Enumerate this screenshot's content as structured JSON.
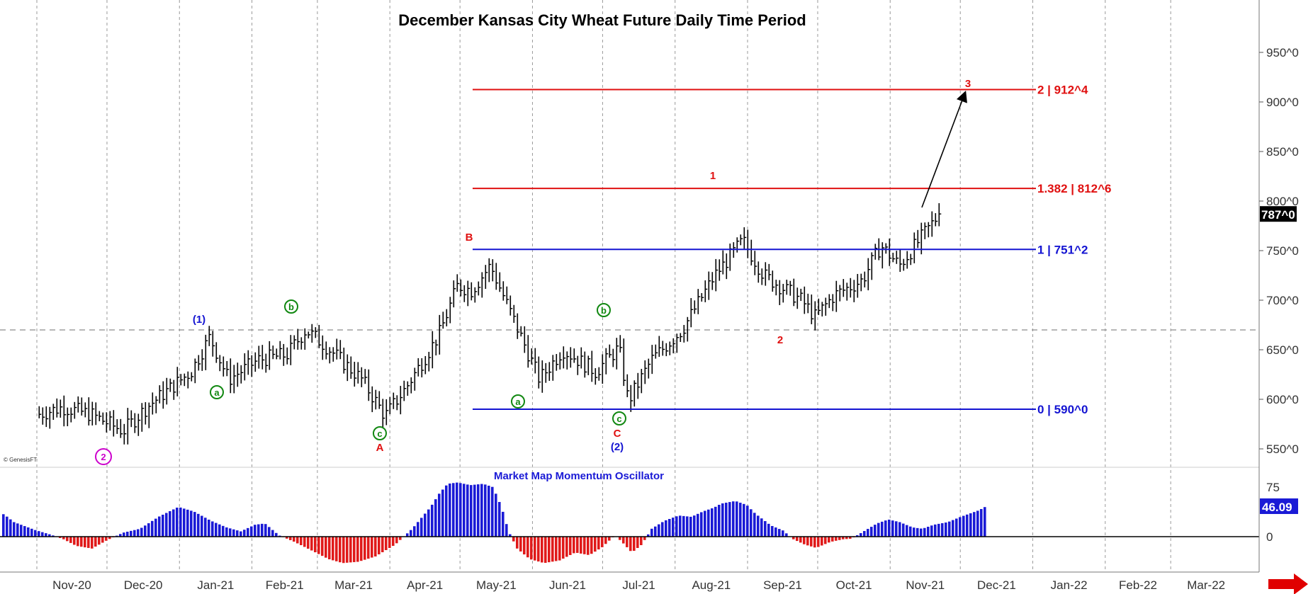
{
  "chart_data": [
    {
      "type": "ohlc",
      "title": "December Kansas City Wheat Future  Daily Time Period",
      "x_tick_labels": [
        "Nov-20",
        "Dec-20",
        "Jan-21",
        "Feb-21",
        "Mar-21",
        "Apr-21",
        "May-21",
        "Jun-21",
        "Jul-21",
        "Aug-21",
        "Sep-21",
        "Oct-21",
        "Nov-21",
        "Dec-21",
        "Jan-22",
        "Feb-22",
        "Mar-22"
      ],
      "y_tick_labels": [
        "550^0",
        "600^0",
        "650^0",
        "700^0",
        "750^0",
        "800^0",
        "850^0",
        "900^0",
        "950^0"
      ],
      "y_ticks": [
        550,
        600,
        650,
        700,
        750,
        800,
        850,
        900,
        950
      ],
      "ylim": [
        535,
        1000
      ],
      "last_price": 787,
      "last_price_label": "787^0",
      "reference_line": 670,
      "close_path": [
        [
          "2020-11-02",
          585
        ],
        [
          "2020-11-12",
          592
        ],
        [
          "2020-11-24",
          585
        ],
        [
          "2020-12-08",
          568
        ],
        [
          "2020-12-18",
          592
        ],
        [
          "2021-01-06",
          628
        ],
        [
          "2021-01-14",
          663
        ],
        [
          "2021-01-22",
          620
        ],
        [
          "2021-02-04",
          640
        ],
        [
          "2021-02-16",
          645
        ],
        [
          "2021-02-24",
          670
        ],
        [
          "2021-03-04",
          655
        ],
        [
          "2021-03-20",
          620
        ],
        [
          "2021-03-30",
          583
        ],
        [
          "2021-04-08",
          612
        ],
        [
          "2021-04-22",
          665
        ],
        [
          "2021-04-30",
          715
        ],
        [
          "2021-05-06",
          710
        ],
        [
          "2021-05-14",
          735
        ],
        [
          "2021-05-24",
          680
        ],
        [
          "2021-06-04",
          620
        ],
        [
          "2021-06-14",
          650
        ],
        [
          "2021-06-28",
          628
        ],
        [
          "2021-07-08",
          652
        ],
        [
          "2021-07-12",
          598
        ],
        [
          "2021-07-22",
          640
        ],
        [
          "2021-08-04",
          670
        ],
        [
          "2021-08-18",
          725
        ],
        [
          "2021-08-30",
          760
        ],
        [
          "2021-09-08",
          725
        ],
        [
          "2021-09-24",
          700
        ],
        [
          "2021-09-30",
          683
        ],
        [
          "2021-10-08",
          705
        ],
        [
          "2021-10-20",
          720
        ],
        [
          "2021-10-28",
          755
        ],
        [
          "2021-11-05",
          735
        ],
        [
          "2021-11-15",
          765
        ],
        [
          "2021-11-22",
          787
        ]
      ],
      "levels": [
        {
          "label": "2 | 912^4",
          "value": 912.5,
          "color": "#e01010"
        },
        {
          "label": "1.382 | 812^6",
          "value": 812.75,
          "color": "#e01010"
        },
        {
          "label": "1 | 751^2",
          "value": 751.25,
          "color": "#1414d2"
        },
        {
          "label": "0 | 590^0",
          "value": 590,
          "color": "#1414d2"
        }
      ],
      "wave_labels": [
        {
          "text": "B",
          "color": "#e01010"
        },
        {
          "text": "1",
          "color": "#e01010"
        },
        {
          "text": "2",
          "color": "#e01010"
        },
        {
          "text": "3",
          "color": "#e01010"
        },
        {
          "text": "A",
          "color": "#e01010"
        },
        {
          "text": "C",
          "color": "#e01010"
        },
        {
          "text": "(1)",
          "color": "#1414d2"
        },
        {
          "text": "(2)",
          "color": "#1414d2"
        }
      ],
      "circled_labels": [
        {
          "text": "2",
          "color": "#cc00cc"
        },
        {
          "text": "a",
          "color": "#118811"
        },
        {
          "text": "b",
          "color": "#118811"
        },
        {
          "text": "c",
          "color": "#118811"
        },
        {
          "text": "a",
          "color": "#118811"
        },
        {
          "text": "b",
          "color": "#118811"
        },
        {
          "text": "c",
          "color": "#118811"
        }
      ],
      "projection_arrow_label": "3",
      "watermark": "© GenesisFT"
    },
    {
      "type": "bar",
      "title": "Market Map Momentum Oscillator",
      "y_tick_labels": [
        "75",
        "0"
      ],
      "last_value_label": "46.09",
      "positive_color": "#1a1ad6",
      "negative_color": "#e01a1a",
      "profile": [
        [
          0,
          36
        ],
        [
          6,
          32
        ],
        [
          18,
          22
        ],
        [
          48,
          10
        ],
        [
          70,
          3
        ],
        [
          88,
          -4
        ],
        [
          106,
          -14
        ],
        [
          128,
          -18
        ],
        [
          150,
          -5
        ],
        [
          172,
          6
        ],
        [
          196,
          12
        ],
        [
          222,
          30
        ],
        [
          250,
          45
        ],
        [
          272,
          38
        ],
        [
          296,
          24
        ],
        [
          318,
          14
        ],
        [
          338,
          8
        ],
        [
          358,
          18
        ],
        [
          372,
          20
        ],
        [
          392,
          2
        ],
        [
          414,
          -8
        ],
        [
          440,
          -22
        ],
        [
          462,
          -34
        ],
        [
          482,
          -40
        ],
        [
          504,
          -38
        ],
        [
          528,
          -30
        ],
        [
          556,
          -12
        ],
        [
          580,
          12
        ],
        [
          606,
          45
        ],
        [
          618,
          65
        ],
        [
          630,
          80
        ],
        [
          644,
          82
        ],
        [
          662,
          78
        ],
        [
          680,
          80
        ],
        [
          694,
          75
        ],
        [
          706,
          45
        ],
        [
          716,
          8
        ],
        [
          728,
          -18
        ],
        [
          746,
          -34
        ],
        [
          766,
          -40
        ],
        [
          788,
          -36
        ],
        [
          810,
          -24
        ],
        [
          830,
          -28
        ],
        [
          848,
          -16
        ],
        [
          860,
          -4
        ],
        [
          866,
          2
        ],
        [
          876,
          -8
        ],
        [
          890,
          -24
        ],
        [
          904,
          -12
        ],
        [
          918,
          12
        ],
        [
          936,
          24
        ],
        [
          956,
          32
        ],
        [
          974,
          30
        ],
        [
          990,
          38
        ],
        [
          1006,
          44
        ],
        [
          1016,
          50
        ],
        [
          1036,
          54
        ],
        [
          1052,
          48
        ],
        [
          1064,
          35
        ],
        [
          1086,
          17
        ],
        [
          1104,
          9
        ],
        [
          1116,
          -3
        ],
        [
          1134,
          -12
        ],
        [
          1150,
          -17
        ],
        [
          1170,
          -8
        ],
        [
          1188,
          -4
        ],
        [
          1200,
          -3
        ],
        [
          1214,
          6
        ],
        [
          1236,
          20
        ],
        [
          1252,
          26
        ],
        [
          1268,
          22
        ],
        [
          1286,
          14
        ],
        [
          1300,
          12
        ],
        [
          1316,
          18
        ],
        [
          1336,
          22
        ],
        [
          1354,
          30
        ],
        [
          1380,
          40
        ],
        [
          1390,
          46
        ]
      ]
    }
  ]
}
